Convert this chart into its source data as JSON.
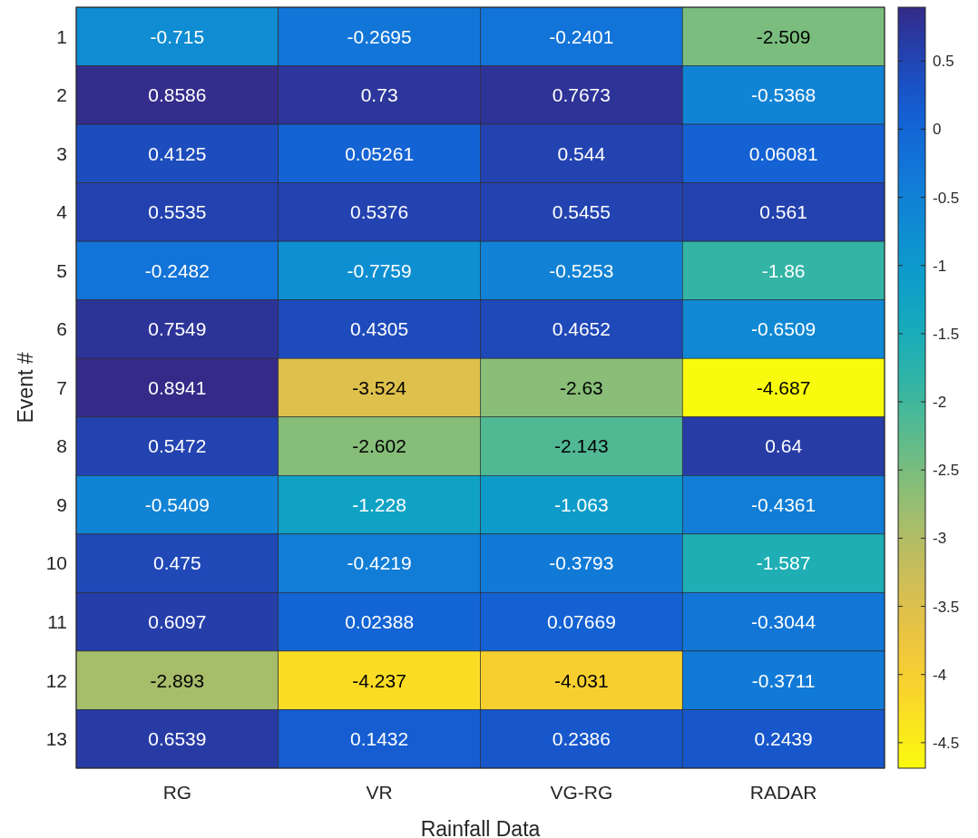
{
  "chart_data": {
    "type": "heatmap",
    "xlabel": "Rainfall Data",
    "ylabel": "Event #",
    "categories": [
      "RG",
      "VR",
      "VG-RG",
      "RADAR"
    ],
    "y_categories": [
      "1",
      "2",
      "3",
      "4",
      "5",
      "6",
      "7",
      "8",
      "9",
      "10",
      "11",
      "12",
      "13"
    ],
    "cells": [
      [
        -0.715,
        -0.2695,
        -0.2401,
        -2.509
      ],
      [
        0.8586,
        0.73,
        0.7673,
        -0.5368
      ],
      [
        0.4125,
        0.05261,
        0.544,
        0.06081
      ],
      [
        0.5535,
        0.5376,
        0.5455,
        0.561
      ],
      [
        -0.2482,
        -0.7759,
        -0.5253,
        -1.86
      ],
      [
        0.7549,
        0.4305,
        0.4652,
        -0.6509
      ],
      [
        0.8941,
        -3.524,
        -2.63,
        -4.687
      ],
      [
        0.5472,
        -2.602,
        -2.143,
        0.64
      ],
      [
        -0.5409,
        -1.228,
        -1.063,
        -0.4361
      ],
      [
        0.475,
        -0.4219,
        -0.3793,
        -1.587
      ],
      [
        0.6097,
        0.02388,
        0.07669,
        -0.3044
      ],
      [
        -2.893,
        -4.237,
        -4.031,
        -0.3711
      ],
      [
        0.6539,
        0.1432,
        0.2386,
        0.2439
      ]
    ],
    "data_labels": true,
    "clim": [
      -4.687,
      0.8941
    ],
    "cticks": [
      0.5,
      0,
      -0.5,
      -1,
      -1.5,
      -2,
      -2.5,
      -3,
      -3.5,
      -4,
      -4.5
    ]
  }
}
